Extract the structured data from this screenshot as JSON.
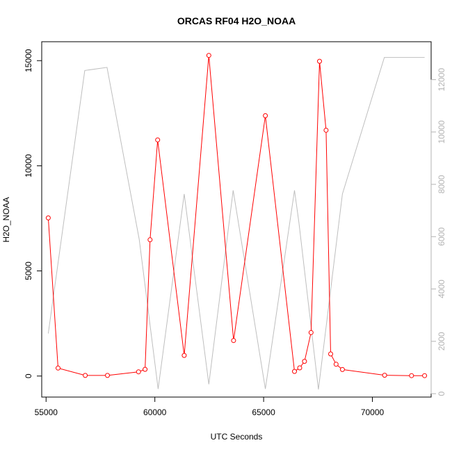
{
  "chart_data": {
    "type": "line",
    "title": "ORCAS RF04 H2O_NOAA",
    "xlabel": "UTC Seconds",
    "ylabel": "H2O_NOAA",
    "xlim": [
      54800,
      72700
    ],
    "ylim": [
      -1000,
      15900
    ],
    "y2lim": [
      -130,
      13450
    ],
    "x_ticks": [
      55000,
      60000,
      65000,
      70000
    ],
    "x_tick_labels": [
      "55000",
      "60000",
      "65000",
      "70000"
    ],
    "y_ticks": [
      0,
      5000,
      10000,
      15000
    ],
    "y_tick_labels": [
      "0",
      "5000",
      "10000",
      "15000"
    ],
    "y2_ticks": [
      0,
      2000,
      4000,
      6000,
      8000,
      10000,
      12000
    ],
    "y2_tick_labels": [
      "0",
      "2000",
      "4000",
      "6000",
      "8000",
      "10000",
      "12000"
    ],
    "colors": {
      "primary": "#ff0000",
      "secondary": "#bebebe",
      "right_axis": "#b3b3b3"
    },
    "series": [
      {
        "axis": "left",
        "style": "line+points",
        "x": [
          55100,
          55550,
          56800,
          57820,
          59250,
          59550,
          59780,
          60130,
          61350,
          62480,
          63620,
          65080,
          66420,
          66660,
          66880,
          67180,
          67570,
          67870,
          68080,
          68330,
          68620,
          70560,
          71800,
          72400
        ],
        "y": [
          7520,
          380,
          30,
          30,
          200,
          320,
          6480,
          11230,
          980,
          15250,
          1690,
          12380,
          220,
          390,
          700,
          2070,
          14970,
          11690,
          1050,
          560,
          310,
          40,
          20,
          20
        ]
      },
      {
        "axis": "right",
        "style": "line",
        "x": [
          55100,
          56780,
          57800,
          59280,
          60150,
          61350,
          62480,
          63600,
          65080,
          66420,
          66620,
          67520,
          68620,
          70550,
          72400
        ],
        "y": [
          2300,
          12350,
          12470,
          5900,
          180,
          7630,
          360,
          7770,
          180,
          7770,
          6550,
          160,
          7630,
          12850,
          12850
        ]
      }
    ]
  }
}
